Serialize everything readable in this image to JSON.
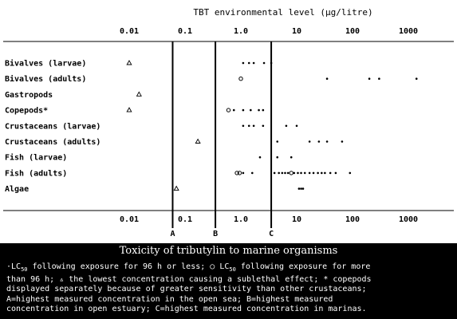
{
  "chart_data": {
    "type": "scatter",
    "title": "TBT environmental level (µg/litre)",
    "x_scale": "log",
    "xlim": [
      0.0033,
      3000
    ],
    "x_ticks": [
      0.01,
      0.1,
      1.0,
      10,
      100,
      1000
    ],
    "x_tick_labels": [
      "0.01",
      "0.1",
      "1.0",
      "10",
      "100",
      "1000"
    ],
    "categories": [
      "Bivalves (larvae)",
      "Bivalves (adults)",
      "Gastropods",
      "Copepods*",
      "Crustaceans (larvae)",
      "Crustaceans (adults)",
      "Fish (larvae)",
      "Fish (adults)",
      "Algae"
    ],
    "series": [
      {
        "name": "LC50 following exposure for 96 h or less",
        "marker": "dot",
        "points": [
          {
            "category": "Bivalves (larvae)",
            "x": [
              1.1,
              1.4,
              1.7,
              2.6,
              3.5
            ]
          },
          {
            "category": "Bivalves (adults)",
            "x": [
              35,
              200,
              300,
              1400
            ]
          },
          {
            "category": "Copepods*",
            "x": [
              0.75,
              1.1,
              1.5,
              2.1,
              2.5
            ]
          },
          {
            "category": "Crustaceans (larvae)",
            "x": [
              1.1,
              1.4,
              1.7,
              2.5,
              6.5,
              10
            ]
          },
          {
            "category": "Crustaceans (adults)",
            "x": [
              4.5,
              17,
              25,
              35,
              65
            ]
          },
          {
            "category": "Fish (larvae)",
            "x": [
              2.2,
              4.5,
              8
            ]
          },
          {
            "category": "Fish (adults)",
            "x": [
              1.1,
              1.6,
              4,
              4.8,
              5.5,
              6.2,
              7,
              9,
              10.5,
              12,
              14,
              17,
              20,
              24,
              28,
              32,
              40,
              50,
              90
            ]
          },
          {
            "category": "Algae",
            "x": [
              11,
              12,
              13
            ]
          }
        ]
      },
      {
        "name": "LC50 following exposure for more than 96 h",
        "marker": "circle",
        "points": [
          {
            "category": "Bivalves (adults)",
            "x": [
              1.0
            ]
          },
          {
            "category": "Copepods*",
            "x": [
              0.6
            ]
          },
          {
            "category": "Fish (adults)",
            "x": [
              0.85,
              0.95,
              8
            ]
          }
        ]
      },
      {
        "name": "the lowest concentration causing a sublethal effect",
        "marker": "triangle",
        "points": [
          {
            "category": "Bivalves (larvae)",
            "x": [
              0.01
            ]
          },
          {
            "category": "Gastropods",
            "x": [
              0.015
            ]
          },
          {
            "category": "Copepods*",
            "x": [
              0.01
            ]
          },
          {
            "category": "Crustaceans (adults)",
            "x": [
              0.17
            ]
          },
          {
            "category": "Algae",
            "x": [
              0.07
            ]
          }
        ]
      }
    ],
    "reference_lines": [
      {
        "label": "A",
        "x": 0.06
      },
      {
        "label": "B",
        "x": 0.35
      },
      {
        "label": "C",
        "x": 3.5
      }
    ],
    "grid": false,
    "legend": "caption below chart"
  },
  "caption": {
    "title": "Toxicity of tributylin to marine organisms",
    "note_parts": {
      "l1a": "·LC",
      "l1b": "50",
      "l1c": " following exposure for 96 h or less; ○ LC",
      "l1d": "50",
      "l1e": " following exposure for more",
      "l2": "than 96 h; ▵ the lowest concentration causing a sublethal effect; * copepods",
      "l3": "displayed separately because of greater sensitivity than other crustaceans;",
      "l4": "A=highest measured concentration in the open sea; B=highest measured",
      "l5": "concentration in open estuary; C=highest measured concentration in marinas."
    }
  },
  "colors": {
    "ink": "#000000",
    "paper": "#ffffff",
    "caption_bg": "#000000",
    "caption_text": "#ffffff"
  }
}
